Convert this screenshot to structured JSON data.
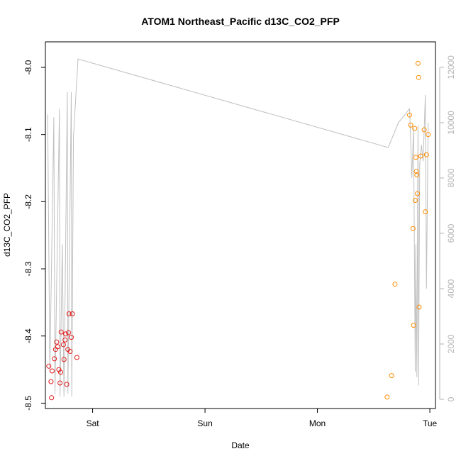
{
  "chart_data": {
    "type": "scatter",
    "title": "ATOM1 Northeast_Pacific d13C_CO2_PFP",
    "xlabel": "Date",
    "ylabel": "d13C_CO2_PFP",
    "x_unit": "days",
    "x_ticks": [
      {
        "label": "Sat",
        "value": 1.0
      },
      {
        "label": "Sun",
        "value": 2.0
      },
      {
        "label": "Mon",
        "value": 3.0
      },
      {
        "label": "Tue",
        "value": 4.0
      }
    ],
    "y_ticks": [
      -8.5,
      -8.4,
      -8.3,
      -8.2,
      -8.1,
      -8.0
    ],
    "y_tick_labels": [
      "-8.5",
      "-8.4",
      "-8.3",
      "-8.2",
      "-8.1",
      "-8.0"
    ],
    "y2_ticks": [
      0,
      2000,
      4000,
      6000,
      8000,
      10000,
      12000
    ],
    "y2_tick_labels": [
      "0",
      "2000",
      "4000",
      "6000",
      "8000",
      "10000",
      "12000"
    ],
    "xlim": [
      0.58,
      4.05
    ],
    "ylim": [
      -8.508,
      -7.962
    ],
    "y2lim": [
      -332,
      12920
    ],
    "colors": {
      "series_red": "#e31a1c",
      "series_orange": "#ff8c00",
      "altitude_line": "#c0c0c0",
      "right_axis": "#b3b3b3"
    },
    "series": [
      {
        "values": [
          [
            0.61,
            -8.445
          ],
          [
            0.63,
            -8.468
          ],
          [
            0.635,
            -8.492
          ],
          [
            0.64,
            -8.452
          ],
          [
            0.66,
            -8.434
          ],
          [
            0.67,
            -8.42
          ],
          [
            0.68,
            -8.409
          ],
          [
            0.69,
            -8.416
          ],
          [
            0.7,
            -8.45
          ],
          [
            0.71,
            -8.47
          ],
          [
            0.715,
            -8.454
          ],
          [
            0.72,
            -8.394
          ],
          [
            0.74,
            -8.413
          ],
          [
            0.745,
            -8.435
          ],
          [
            0.755,
            -8.406
          ],
          [
            0.76,
            -8.397
          ],
          [
            0.77,
            -8.472
          ],
          [
            0.78,
            -8.42
          ],
          [
            0.785,
            -8.395
          ],
          [
            0.79,
            -8.367
          ],
          [
            0.8,
            -8.423
          ],
          [
            0.81,
            -8.402
          ],
          [
            0.82,
            -8.367
          ],
          [
            0.86,
            -8.432
          ]
        ]
      },
      {
        "values": [
          [
            3.62,
            -8.491
          ],
          [
            3.66,
            -8.459
          ],
          [
            3.69,
            -8.323
          ],
          [
            3.82,
            -8.071
          ],
          [
            3.83,
            -8.086
          ],
          [
            3.85,
            -8.24
          ],
          [
            3.855,
            -8.384
          ],
          [
            3.865,
            -8.091
          ],
          [
            3.87,
            -8.198
          ],
          [
            3.875,
            -8.134
          ],
          [
            3.88,
            -8.155
          ],
          [
            3.885,
            -8.16
          ],
          [
            3.89,
            -8.188
          ],
          [
            3.895,
            -7.994
          ],
          [
            3.9,
            -8.015
          ],
          [
            3.905,
            -8.357
          ],
          [
            3.92,
            -8.132
          ],
          [
            3.95,
            -8.093
          ],
          [
            3.96,
            -8.215
          ],
          [
            3.97,
            -8.13
          ],
          [
            3.985,
            -8.1
          ]
        ]
      }
    ],
    "altitude_line": {
      "axis": "right",
      "points": [
        [
          0.6,
          10300
        ],
        [
          0.62,
          1000
        ],
        [
          0.655,
          10200
        ],
        [
          0.665,
          200
        ],
        [
          0.705,
          10500
        ],
        [
          0.71,
          100
        ],
        [
          0.73,
          5600
        ],
        [
          0.745,
          100
        ],
        [
          0.775,
          11100
        ],
        [
          0.78,
          200
        ],
        [
          0.81,
          11100
        ],
        [
          0.815,
          100
        ],
        [
          0.83,
          9500
        ],
        [
          0.87,
          12300
        ],
        [
          3.63,
          9100
        ],
        [
          3.72,
          10000
        ],
        [
          3.82,
          10500
        ],
        [
          3.84,
          8000
        ],
        [
          3.855,
          9800
        ],
        [
          3.87,
          1000
        ],
        [
          3.875,
          5600
        ],
        [
          3.885,
          800
        ],
        [
          3.895,
          9900
        ],
        [
          3.9,
          500
        ],
        [
          3.91,
          8500
        ],
        [
          3.925,
          9200
        ],
        [
          3.94,
          8600
        ],
        [
          3.96,
          11000
        ],
        [
          3.97,
          4000
        ],
        [
          3.985,
          10000
        ]
      ]
    }
  }
}
